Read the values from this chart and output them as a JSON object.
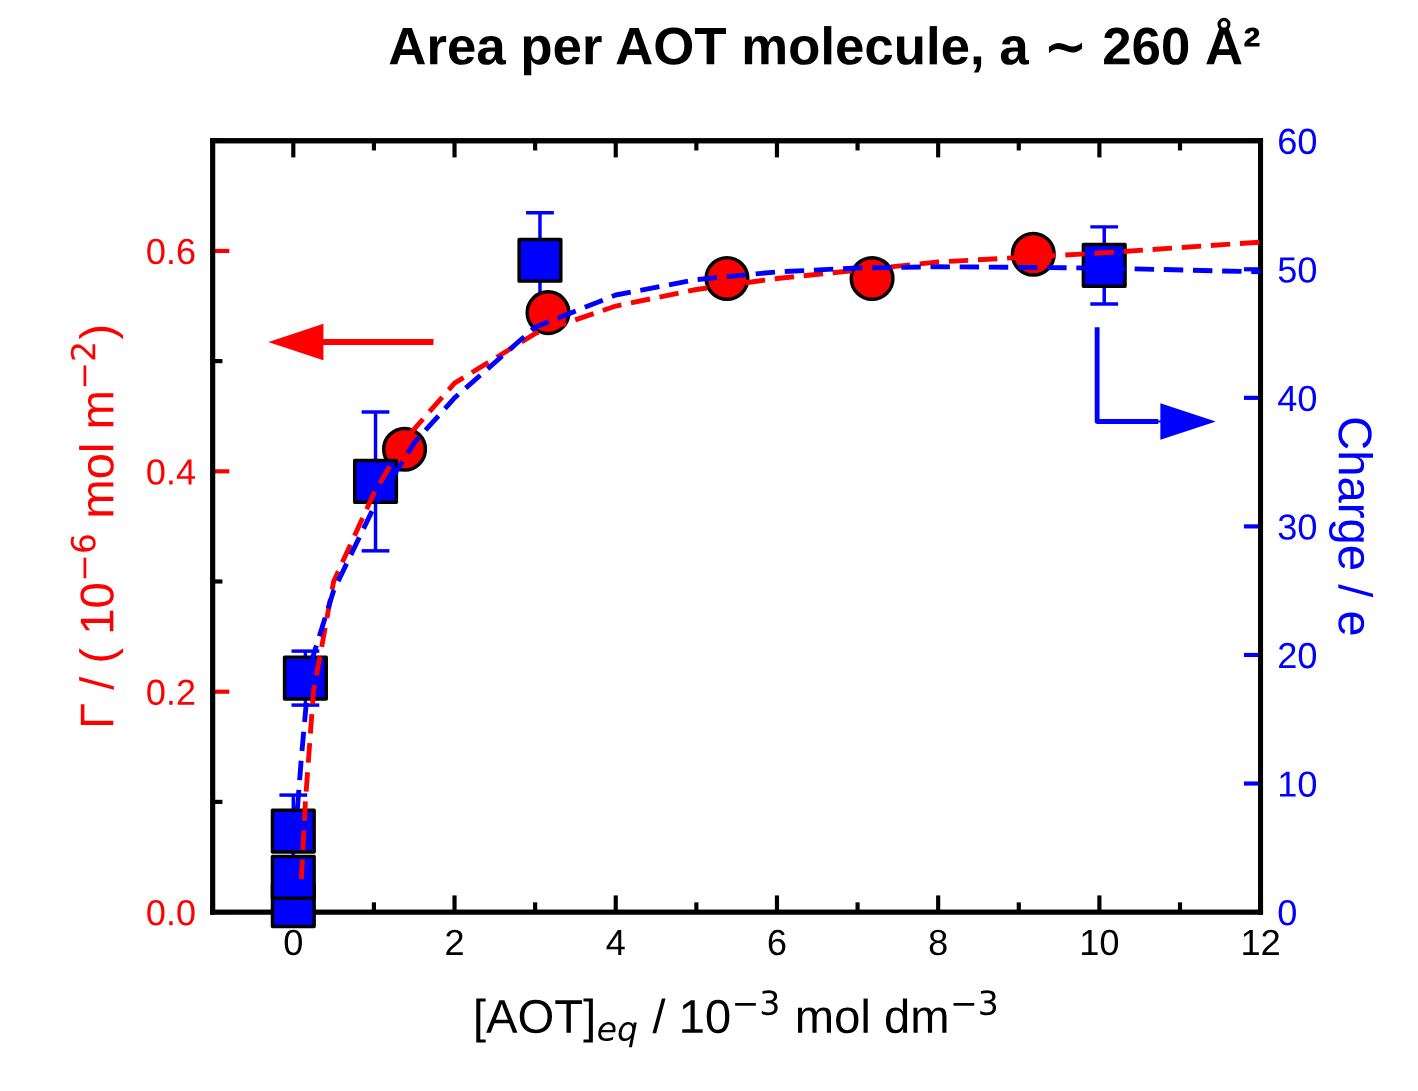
{
  "chart_data": {
    "type": "scatter",
    "title": "Area per AOT molecule, a ∼ 260 Å²",
    "xlabel": "[AOT]$_{eq}$ / 10$^{−3}$ mol dm$^{−3}$",
    "ylabel": "Γ / ( 10$^{−6}$ mol m$^{−2}$)",
    "y2label": "Charge / e",
    "xlim": [
      -1,
      12
    ],
    "xticks": [
      0,
      2,
      4,
      6,
      8,
      10,
      12
    ],
    "ylim": [
      0,
      0.7
    ],
    "yticks": [
      {
        "value": 0,
        "label": "0.0"
      },
      0.2,
      0.4,
      0.6
    ],
    "y2lim": [
      0,
      60
    ],
    "y2ticks": [
      0,
      10,
      20,
      30,
      40,
      50,
      60
    ],
    "grid": false,
    "series": [
      {
        "type": "scatter",
        "marker": "circle",
        "color": "#ff0000",
        "x": [
          1.38,
          3.16,
          5.38,
          7.18,
          9.18
        ],
        "values": [
          0.42,
          0.544,
          0.575,
          0.575,
          0.597
        ]
      },
      {
        "type": "scatter",
        "marker": "square",
        "axis": "y2",
        "color": "#0000ff",
        "x": [
          0,
          0,
          0,
          0.15,
          1.02,
          3.06,
          10.06
        ],
        "values": [
          0.5,
          2.7,
          6.3,
          18.2,
          33.5,
          50.7,
          50.3
        ],
        "errors": [
          null,
          1.3,
          2.8,
          2.1,
          5.4,
          3.7,
          3.0
        ]
      },
      {
        "type": "line",
        "line_style": "dashed",
        "marker": "none",
        "color": "#ff0000",
        "x": [
          0.1,
          0.15,
          0.25,
          0.5,
          1.0,
          1.4,
          2.0,
          3.0,
          4.0,
          5.0,
          6.0,
          8.0,
          10.0,
          12.0
        ],
        "values": [
          0.03,
          0.1,
          0.2,
          0.3,
          0.38,
          0.43,
          0.48,
          0.525,
          0.55,
          0.565,
          0.575,
          0.59,
          0.598,
          0.608
        ]
      },
      {
        "type": "line",
        "line_style": "dashed",
        "marker": "none",
        "axis": "y2",
        "color": "#0000ff",
        "x": [
          0.05,
          0.1,
          0.2,
          0.5,
          1.0,
          1.5,
          2.0,
          3.0,
          4.0,
          5.0,
          6.0,
          7.0,
          8.0,
          10.0,
          12.0
        ],
        "values": [
          8,
          12,
          19,
          25,
          31.5,
          36.5,
          40,
          45.5,
          48,
          49.2,
          49.8,
          50.1,
          50.2,
          50.1,
          49.8
        ]
      }
    ]
  }
}
